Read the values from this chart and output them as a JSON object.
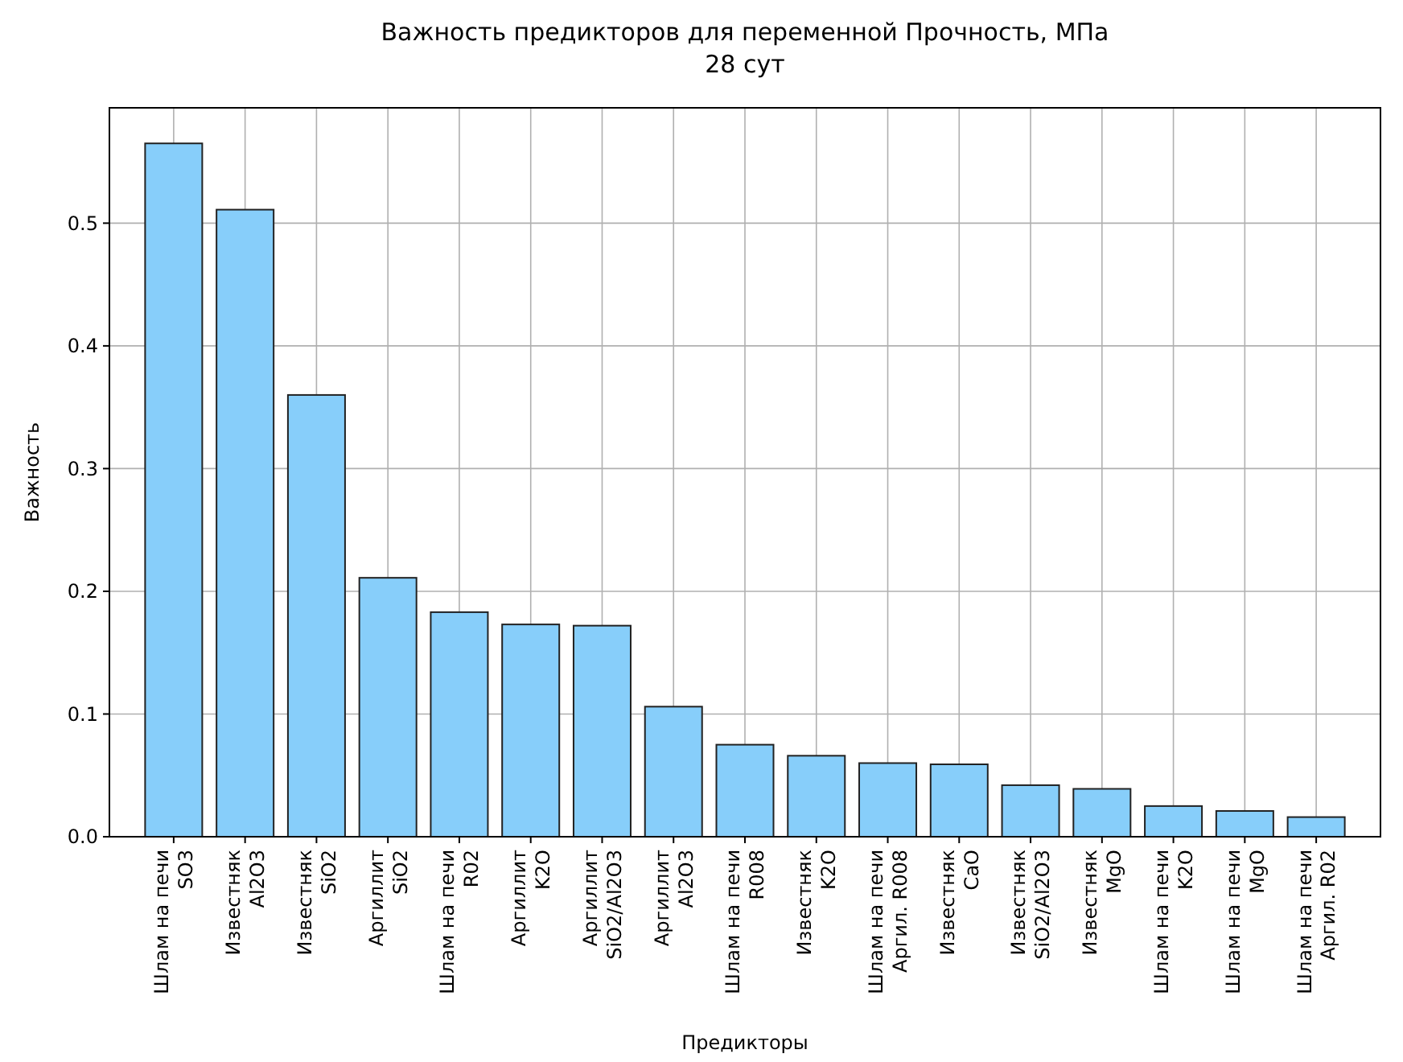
{
  "chart_data": {
    "type": "bar",
    "title": "Важность предикторов для переменной Прочность, МПа\n28 сут",
    "xlabel": "Предикторы",
    "ylabel": "Важность",
    "categories": [
      "Шлам на печи\nSO3",
      "Известняк\nAl2O3",
      "Известняк\nSiO2",
      "Аргиллит\nSiO2",
      "Шлам на печи\nR02",
      "Аргиллит\nK2O",
      "Аргиллит\nSiO2/Al2O3",
      "Аргиллит\nAl2O3",
      "Шлам на печи\nR008",
      "Известняк\nK2O",
      "Шлам на печи\nАргил. R008",
      "Известняк\nCaO",
      "Известняк\nSiO2/Al2O3",
      "Известняк\nMgO",
      "Шлам на печи\nK2O",
      "Шлам на печи\nMgO",
      "Шлам на печи\nАргил. R02"
    ],
    "values": [
      0.565,
      0.511,
      0.36,
      0.211,
      0.183,
      0.173,
      0.172,
      0.106,
      0.075,
      0.066,
      0.06,
      0.059,
      0.042,
      0.039,
      0.025,
      0.021,
      0.016
    ],
    "color": "#87cefa",
    "ylim": [
      0,
      0.594
    ],
    "yticks": [
      {
        "value": 0,
        "label": "0.0"
      },
      0.1,
      0.2,
      0.3,
      0.4,
      0.5
    ],
    "grid": true
  }
}
